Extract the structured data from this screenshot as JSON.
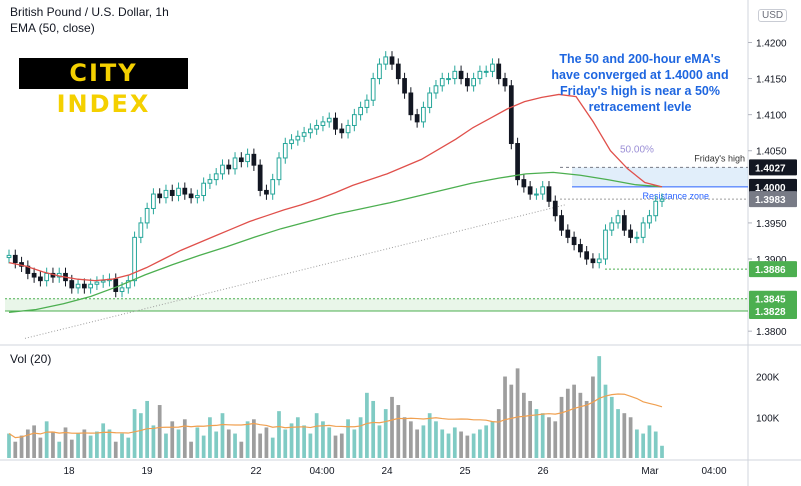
{
  "header": {
    "title": "British Pound / U.S. Dollar, 1h",
    "ema_label": "EMA (50, close)",
    "currency": "USD"
  },
  "logo": {
    "text": "CITY INDEX"
  },
  "annotation": {
    "lines": [
      "The 50 and 200-hour eMA's",
      "have converged at 1.4000 and",
      "Friday's high is near a 50%",
      "retracement levle"
    ]
  },
  "volume_pane": {
    "title": "Vol (20)"
  },
  "colors": {
    "up": "#26a69a",
    "down": "#131722",
    "ema50": "#e0504b",
    "ema200": "#4caf50",
    "annotation": "#1e66e0",
    "zone": "#c8e0f5",
    "vol_ma": "#f0a050"
  },
  "chart_data": {
    "type": "candlestick",
    "price_axis": {
      "ylim": [
        1.3785,
        1.4245
      ],
      "tick_labels": [
        "1.4200",
        "1.4150",
        "1.4100",
        "1.4050",
        "1.3950",
        "1.3900",
        "1.3800"
      ]
    },
    "time_axis": {
      "tick_labels": [
        "18",
        "19",
        "22",
        "04:00",
        "24",
        "25",
        "26",
        "Mar",
        "04:00"
      ]
    },
    "volume_axis": {
      "ylim": [
        0,
        270000
      ],
      "tick_labels": [
        "200K",
        "100K"
      ]
    },
    "closes": [
      1.3905,
      1.3895,
      1.389,
      1.388,
      1.3875,
      1.387,
      1.388,
      1.3875,
      1.388,
      1.387,
      1.386,
      1.3865,
      1.386,
      1.3865,
      1.3868,
      1.387,
      1.3872,
      1.3855,
      1.386,
      1.387,
      1.393,
      1.395,
      1.397,
      1.399,
      1.3985,
      1.3995,
      1.3988,
      1.3998,
      1.399,
      1.3985,
      1.3988,
      1.4005,
      1.401,
      1.4018,
      1.403,
      1.4025,
      1.404,
      1.4035,
      1.4045,
      1.403,
      1.3995,
      1.399,
      1.401,
      1.404,
      1.406,
      1.4065,
      1.407,
      1.4075,
      1.408,
      1.4085,
      1.409,
      1.4095,
      1.408,
      1.4075,
      1.4085,
      1.41,
      1.411,
      1.412,
      1.415,
      1.417,
      1.418,
      1.417,
      1.415,
      1.413,
      1.41,
      1.409,
      1.411,
      1.413,
      1.414,
      1.415,
      1.415,
      1.416,
      1.415,
      1.414,
      1.415,
      1.416,
      1.416,
      1.417,
      1.415,
      1.414,
      1.406,
      1.401,
      1.4,
      1.399,
      1.399,
      1.4,
      1.398,
      1.396,
      1.394,
      1.393,
      1.392,
      1.391,
      1.39,
      1.3895,
      1.39,
      1.394,
      1.395,
      1.396,
      1.394,
      1.393,
      1.393,
      1.395,
      1.396,
      1.398,
      1.3983
    ],
    "volume": [
      60000,
      40000,
      55000,
      70000,
      80000,
      50000,
      90000,
      65000,
      40000,
      75000,
      45000,
      60000,
      70000,
      55000,
      65000,
      85000,
      70000,
      40000,
      60000,
      50000,
      120000,
      110000,
      140000,
      80000,
      130000,
      60000,
      90000,
      70000,
      95000,
      40000,
      75000,
      55000,
      100000,
      65000,
      110000,
      70000,
      60000,
      40000,
      90000,
      95000,
      60000,
      75000,
      50000,
      115000,
      70000,
      85000,
      100000,
      80000,
      60000,
      110000,
      90000,
      75000,
      55000,
      60000,
      95000,
      70000,
      100000,
      160000,
      140000,
      80000,
      120000,
      150000,
      130000,
      100000,
      90000,
      70000,
      80000,
      110000,
      90000,
      70000,
      60000,
      75000,
      65000,
      55000,
      60000,
      70000,
      80000,
      90000,
      120000,
      200000,
      180000,
      220000,
      160000,
      140000,
      120000,
      110000,
      100000,
      90000,
      150000,
      170000,
      180000,
      160000,
      140000,
      200000,
      250000,
      180000,
      150000,
      120000,
      110000,
      100000,
      70000,
      60000,
      80000,
      65000,
      30000
    ],
    "ema50": [
      1.3895,
      1.389,
      1.3882,
      1.3876,
      1.3872,
      1.387,
      1.3872,
      1.3878,
      1.3888,
      1.39,
      1.3912,
      1.3922,
      1.3932,
      1.3942,
      1.3952,
      1.396,
      1.3968,
      1.3975,
      1.3983,
      1.3992,
      1.4002,
      1.401,
      1.4018,
      1.4028,
      1.4038,
      1.4052,
      1.4066,
      1.4082,
      1.4095,
      1.4108,
      1.4118,
      1.4124,
      1.4128,
      1.4125,
      1.409,
      1.405,
      1.4025,
      1.4006,
      1.4
    ],
    "ema200": [
      1.3826,
      1.383,
      1.3838,
      1.3848,
      1.3862,
      1.3878,
      1.3892,
      1.3905,
      1.3917,
      1.393,
      1.3942,
      1.3952,
      1.3962,
      1.397,
      1.3978,
      1.3987,
      1.3996,
      1.4005,
      1.4012,
      1.4018,
      1.402,
      1.4016,
      1.401,
      1.4003,
      1.4
    ],
    "horizontal_levels": [
      {
        "value": 1.4027,
        "label": "Friday's high"
      },
      {
        "value": 1.4,
        "label": "Resistance zone"
      },
      {
        "value": 1.3983,
        "label": ""
      },
      {
        "value": 1.3886,
        "label": ""
      },
      {
        "value": 1.3845,
        "label": ""
      },
      {
        "value": 1.3828,
        "label": ""
      }
    ],
    "price_labels": [
      "1.4027",
      "1.4000",
      "1.3983",
      "1.3886",
      "1.3845",
      "1.3828"
    ],
    "fib_label": "50.00%"
  }
}
